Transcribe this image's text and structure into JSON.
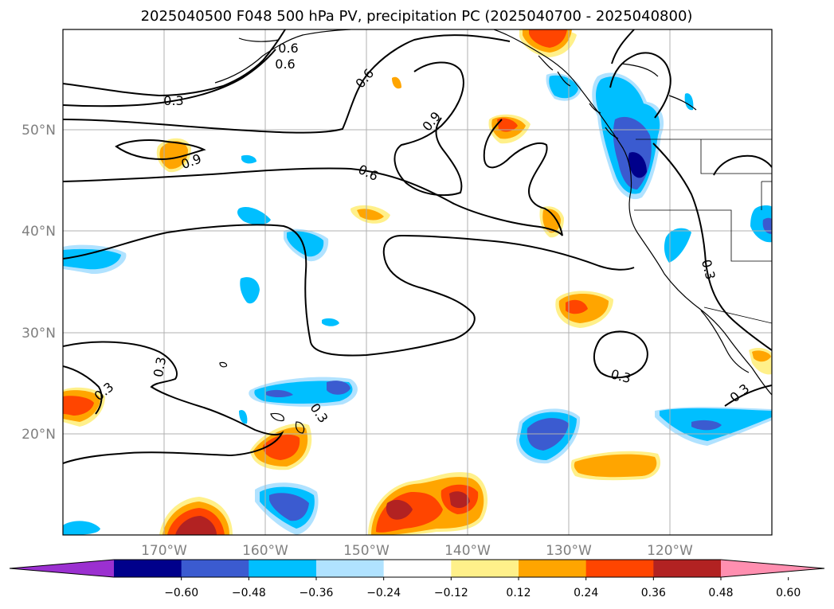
{
  "title": "2025040500 F048 500 hPa PV, precipitation PC (2025040700 - 2025040800)",
  "lat_labels": [
    "50°N",
    "40°N",
    "30°N",
    "20°N"
  ],
  "lon_labels": [
    "170°W",
    "160°W",
    "150°W",
    "140°W",
    "130°W",
    "120°W"
  ],
  "contour_labels": [
    "0.3",
    "0.6",
    "0.6",
    "0.9",
    "0.6",
    "0.9",
    "0.3",
    "0.3",
    "0.3",
    "0.3",
    "0.3",
    "0.3",
    "0.6"
  ],
  "colorbar": {
    "ticks": [
      "-0.60",
      "-0.48",
      "-0.36",
      "-0.24",
      "-0.12",
      "0.12",
      "0.24",
      "0.36",
      "0.48",
      "0.60"
    ],
    "colors": [
      "#9b30d0",
      "#00008b",
      "#3b5bd0",
      "#00bfff",
      "#b0e2ff",
      "#ffffff",
      "#fff08a",
      "#ffa500",
      "#ff4500",
      "#b22222",
      "#ff8fb0"
    ]
  },
  "palette": {
    "neg_light": "#b0e2ff",
    "neg_mid": "#00bfff",
    "neg_strong": "#3b5bd0",
    "neg_max": "#00008b",
    "pos_light": "#fff08a",
    "pos_mid": "#ffa500",
    "pos_strong": "#ff4500",
    "pos_max": "#b22222"
  }
}
